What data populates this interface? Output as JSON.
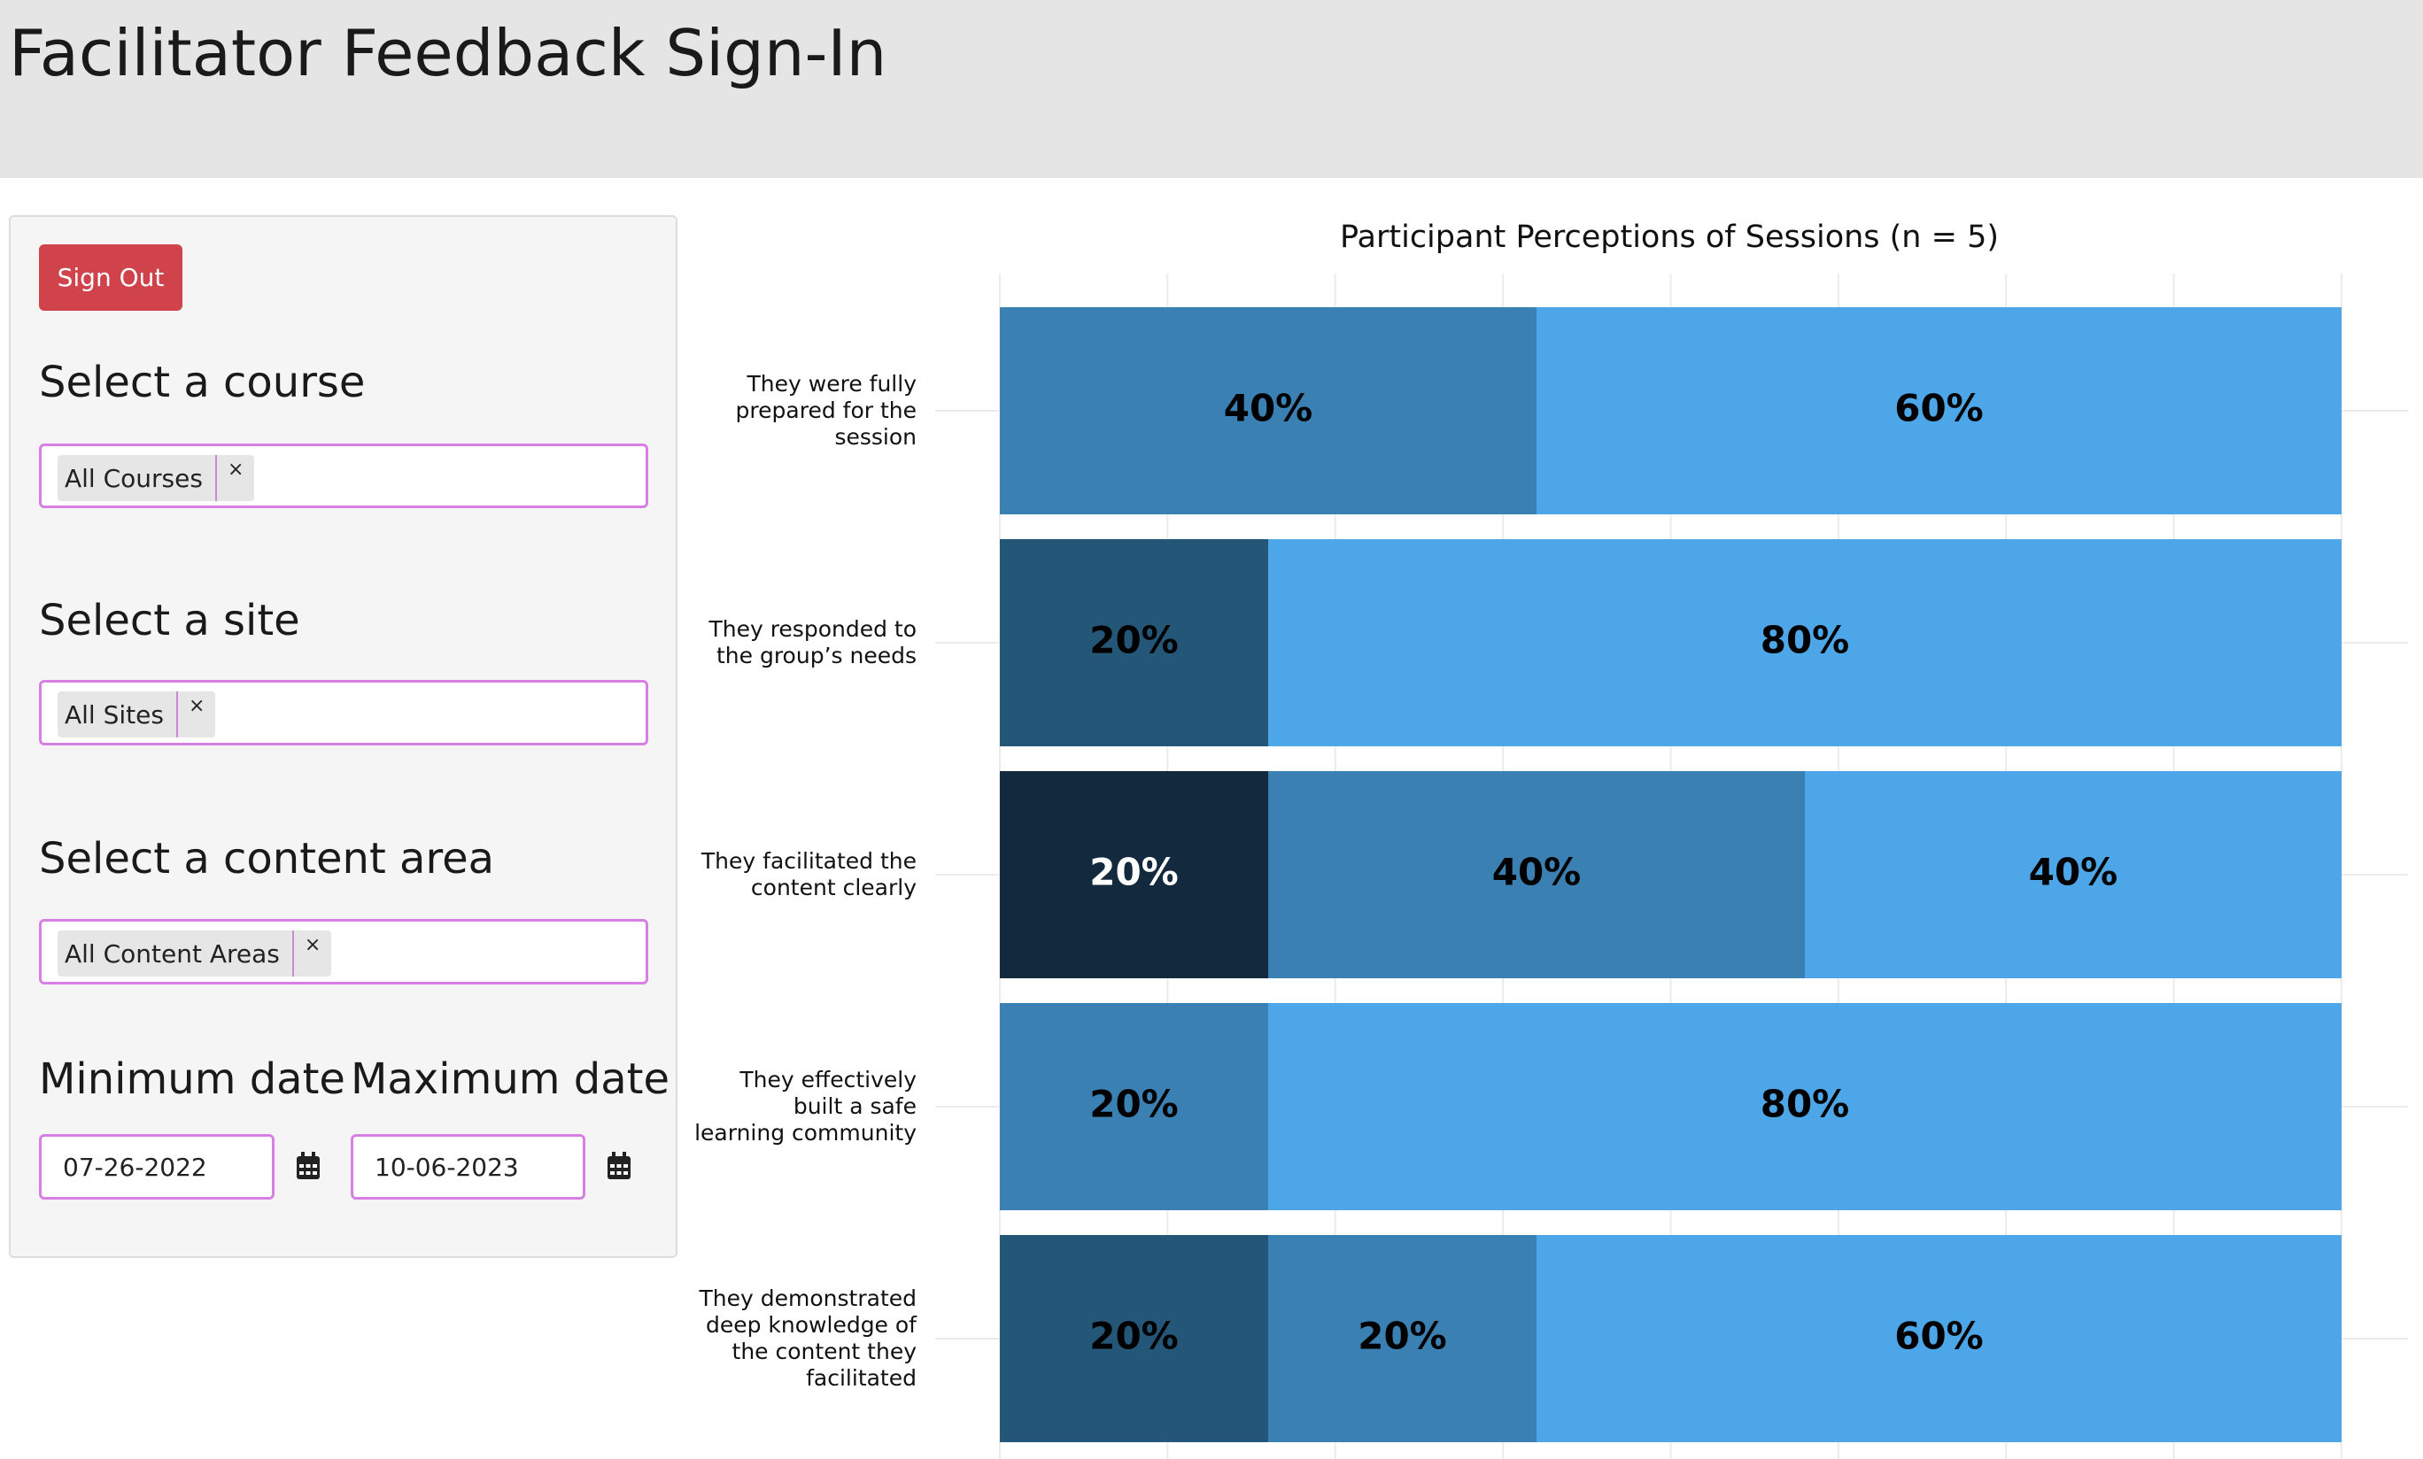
{
  "header": {
    "title": "Facilitator Feedback Sign-In"
  },
  "sidebar": {
    "sign_out": "Sign Out",
    "course": {
      "label": "Select a course",
      "selected": "All Courses",
      "remove": "×"
    },
    "site": {
      "label": "Select a site",
      "selected": "All Sites",
      "remove": "×"
    },
    "content_area": {
      "label": "Select a content area",
      "selected": "All Content Areas",
      "remove": "×"
    },
    "min_date": {
      "label": "Minimum date",
      "value": "07-26-2022"
    },
    "max_date": {
      "label": "Maximum date",
      "value": "10-06-2023"
    }
  },
  "chart_data": {
    "type": "bar",
    "orientation": "horizontal",
    "stacked": true,
    "title": "Participant Perceptions of Sessions (n = 5)",
    "categories": [
      "They were fully\nprepared for the\nsession",
      "They responded to\nthe group’s needs",
      "They facilitated the\ncontent clearly",
      "They effectively\nbuilt a safe\nlearning community",
      "They demonstrated\ndeep knowledge of\nthe content they\nfacilitated"
    ],
    "series": [
      {
        "color": "#132a3e",
        "label_color": "#ffffff",
        "values": [
          null,
          null,
          20,
          null,
          null
        ],
        "value_labels": [
          null,
          null,
          "20%",
          null,
          null
        ]
      },
      {
        "color": "#245678",
        "label_color": "#000000",
        "values": [
          null,
          20,
          null,
          null,
          20
        ],
        "value_labels": [
          null,
          "20%",
          null,
          null,
          "20%"
        ]
      },
      {
        "color": "#3a80b2",
        "label_color": "#000000",
        "values": [
          40,
          null,
          40,
          20,
          20
        ],
        "value_labels": [
          "40%",
          null,
          "40%",
          "20%",
          "20%"
        ]
      },
      {
        "color": "#4da6e7",
        "label_color": "#000000",
        "values": [
          60,
          80,
          40,
          80,
          60
        ],
        "value_labels": [
          "60%",
          "80%",
          "40%",
          "80%",
          "60%"
        ]
      }
    ],
    "xlim": [
      0,
      100
    ],
    "xticks": [
      0,
      12.5,
      25,
      37.5,
      50,
      62.5,
      75,
      87.5,
      100
    ],
    "grid": true
  }
}
